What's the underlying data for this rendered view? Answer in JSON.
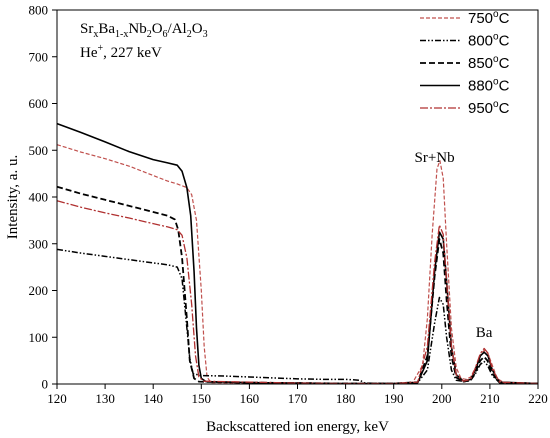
{
  "chart_data": {
    "type": "line",
    "xlabel": "Backscattered ion energy, keV",
    "ylabel": "Intensity, a. u.",
    "xlim": [
      120,
      220
    ],
    "ylim": [
      0,
      800
    ],
    "xticks": [
      120,
      130,
      140,
      150,
      160,
      170,
      180,
      190,
      200,
      210,
      220
    ],
    "yticks": [
      0,
      100,
      200,
      300,
      400,
      500,
      600,
      700,
      800
    ],
    "grid": false,
    "legend_position": "top-right",
    "annotations": {
      "title_line1": {
        "parts": [
          [
            "Sr",
            ""
          ],
          [
            "x",
            "sub"
          ],
          [
            "Ba",
            ""
          ],
          [
            "1-x",
            "sub"
          ],
          [
            "Nb",
            ""
          ],
          [
            "2",
            "sub"
          ],
          [
            "O",
            ""
          ],
          [
            "6",
            "sub"
          ],
          [
            "/Al",
            ""
          ],
          [
            "2",
            "sub"
          ],
          [
            "O",
            ""
          ],
          [
            "3",
            "sub"
          ]
        ]
      },
      "title_line2": {
        "parts": [
          [
            "He",
            ""
          ],
          [
            "+",
            "sup"
          ],
          [
            ", 227 keV",
            ""
          ]
        ]
      },
      "peak_srnb": "Sr+Nb",
      "peak_ba": "Ba"
    },
    "series": [
      {
        "name": "750",
        "unit": "oC",
        "color": "#c0504d",
        "dash": "4,2",
        "width": 1.2,
        "points": [
          [
            120,
            512
          ],
          [
            125,
            496
          ],
          [
            130,
            482
          ],
          [
            135,
            466
          ],
          [
            140,
            446
          ],
          [
            143,
            434
          ],
          [
            145,
            428
          ],
          [
            147,
            420
          ],
          [
            148,
            405
          ],
          [
            149,
            350
          ],
          [
            150,
            200
          ],
          [
            150.6,
            80
          ],
          [
            151.2,
            15
          ],
          [
            152,
            3
          ],
          [
            160,
            2
          ],
          [
            180,
            1
          ],
          [
            190,
            1
          ],
          [
            194,
            4
          ],
          [
            196,
            40
          ],
          [
            197,
            140
          ],
          [
            198,
            320
          ],
          [
            199,
            460
          ],
          [
            199.6,
            478
          ],
          [
            200.3,
            440
          ],
          [
            201,
            300
          ],
          [
            202,
            120
          ],
          [
            203,
            35
          ],
          [
            204,
            12
          ],
          [
            205,
            10
          ],
          [
            206,
            15
          ],
          [
            207,
            35
          ],
          [
            208,
            62
          ],
          [
            208.8,
            72
          ],
          [
            209.6,
            65
          ],
          [
            210.5,
            40
          ],
          [
            211.5,
            12
          ],
          [
            213,
            2
          ],
          [
            220,
            1
          ]
        ]
      },
      {
        "name": "800",
        "unit": "oC",
        "color": "#000000",
        "dash": "6,2,1.5,2,1.5,2",
        "width": 1.5,
        "points": [
          [
            120,
            288
          ],
          [
            125,
            280
          ],
          [
            130,
            273
          ],
          [
            135,
            266
          ],
          [
            140,
            259
          ],
          [
            143,
            255
          ],
          [
            145,
            250
          ],
          [
            146,
            225
          ],
          [
            147,
            120
          ],
          [
            147.6,
            55
          ],
          [
            148.3,
            22
          ],
          [
            150,
            18
          ],
          [
            155,
            17
          ],
          [
            160,
            15
          ],
          [
            165,
            13
          ],
          [
            170,
            11
          ],
          [
            175,
            10
          ],
          [
            180,
            10
          ],
          [
            183,
            8
          ],
          [
            184,
            2
          ],
          [
            190,
            1
          ],
          [
            195,
            3
          ],
          [
            197,
            30
          ],
          [
            198.5,
            130
          ],
          [
            199.5,
            185
          ],
          [
            200.3,
            170
          ],
          [
            201,
            100
          ],
          [
            202,
            30
          ],
          [
            203,
            8
          ],
          [
            205,
            5
          ],
          [
            206,
            8
          ],
          [
            207,
            22
          ],
          [
            208,
            42
          ],
          [
            208.8,
            48
          ],
          [
            209.5,
            40
          ],
          [
            210.5,
            18
          ],
          [
            212,
            3
          ],
          [
            220,
            1
          ]
        ]
      },
      {
        "name": "850",
        "unit": "oC",
        "color": "#000000",
        "dash": "6,3",
        "width": 1.8,
        "points": [
          [
            120,
            422
          ],
          [
            125,
            407
          ],
          [
            130,
            394
          ],
          [
            135,
            381
          ],
          [
            140,
            368
          ],
          [
            143,
            360
          ],
          [
            144.5,
            352
          ],
          [
            145.2,
            330
          ],
          [
            146,
            270
          ],
          [
            147,
            140
          ],
          [
            147.6,
            50
          ],
          [
            148.5,
            12
          ],
          [
            149.5,
            5
          ],
          [
            155,
            4
          ],
          [
            160,
            3
          ],
          [
            170,
            2
          ],
          [
            180,
            1
          ],
          [
            190,
            1
          ],
          [
            195,
            4
          ],
          [
            197,
            60
          ],
          [
            198.5,
            230
          ],
          [
            199.5,
            310
          ],
          [
            200.3,
            280
          ],
          [
            201,
            180
          ],
          [
            202,
            60
          ],
          [
            203,
            14
          ],
          [
            204.5,
            5
          ],
          [
            206,
            8
          ],
          [
            207,
            25
          ],
          [
            208,
            50
          ],
          [
            208.8,
            58
          ],
          [
            209.5,
            50
          ],
          [
            210.5,
            22
          ],
          [
            212,
            3
          ],
          [
            220,
            1
          ]
        ]
      },
      {
        "name": "880",
        "unit": "oC",
        "color": "#000000",
        "dash": "",
        "width": 1.6,
        "points": [
          [
            120,
            557
          ],
          [
            125,
            538
          ],
          [
            130,
            518
          ],
          [
            135,
            497
          ],
          [
            140,
            480
          ],
          [
            143,
            473
          ],
          [
            145,
            468
          ],
          [
            146,
            455
          ],
          [
            147,
            420
          ],
          [
            147.8,
            360
          ],
          [
            148.5,
            240
          ],
          [
            149,
            120
          ],
          [
            149.5,
            40
          ],
          [
            150,
            12
          ],
          [
            151,
            5
          ],
          [
            155,
            4
          ],
          [
            160,
            3
          ],
          [
            170,
            2
          ],
          [
            180,
            1
          ],
          [
            190,
            1
          ],
          [
            195,
            3
          ],
          [
            197,
            50
          ],
          [
            198.5,
            240
          ],
          [
            199.5,
            325
          ],
          [
            200.3,
            310
          ],
          [
            201,
            220
          ],
          [
            202,
            80
          ],
          [
            203,
            20
          ],
          [
            204.5,
            6
          ],
          [
            206,
            10
          ],
          [
            207,
            30
          ],
          [
            208,
            60
          ],
          [
            208.8,
            68
          ],
          [
            209.6,
            60
          ],
          [
            210.5,
            30
          ],
          [
            212,
            4
          ],
          [
            220,
            1
          ]
        ]
      },
      {
        "name": "950",
        "unit": "oC",
        "color": "#b03030",
        "dash": "8,2,2,2",
        "width": 1.3,
        "points": [
          [
            120,
            392
          ],
          [
            125,
            378
          ],
          [
            130,
            366
          ],
          [
            135,
            355
          ],
          [
            140,
            343
          ],
          [
            143,
            336
          ],
          [
            145,
            330
          ],
          [
            146,
            318
          ],
          [
            147,
            270
          ],
          [
            148,
            170
          ],
          [
            148.8,
            60
          ],
          [
            149.5,
            15
          ],
          [
            150.5,
            6
          ],
          [
            155,
            5
          ],
          [
            160,
            4
          ],
          [
            170,
            2
          ],
          [
            180,
            1
          ],
          [
            190,
            1
          ],
          [
            195,
            4
          ],
          [
            197,
            80
          ],
          [
            198.5,
            260
          ],
          [
            199.5,
            340
          ],
          [
            200.3,
            320
          ],
          [
            201,
            220
          ],
          [
            202,
            80
          ],
          [
            203,
            20
          ],
          [
            204.5,
            6
          ],
          [
            206,
            10
          ],
          [
            207,
            35
          ],
          [
            208,
            65
          ],
          [
            208.8,
            76
          ],
          [
            209.6,
            66
          ],
          [
            210.5,
            32
          ],
          [
            212,
            4
          ],
          [
            220,
            1
          ]
        ]
      }
    ]
  }
}
